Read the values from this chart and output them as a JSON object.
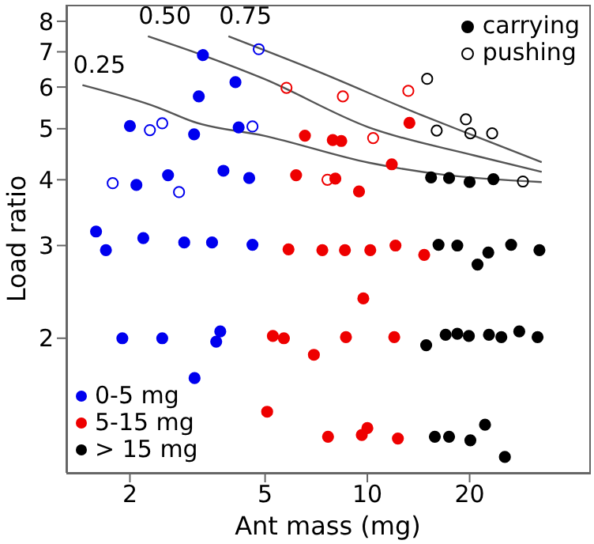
{
  "chart_data": {
    "type": "scatter",
    "xlabel": "Ant mass (mg)",
    "ylabel": "Load ratio",
    "log": "xy",
    "xlim": [
      1.3,
      45
    ],
    "xticks": [
      2,
      5,
      10,
      20
    ],
    "ylim": [
      1.11,
      8.6
    ],
    "yticks": [
      2,
      3,
      4,
      5,
      6,
      7,
      8
    ],
    "grid": false,
    "legend": "bottom left",
    "marker": "circle",
    "annotations": [
      "carrying",
      "pushing"
    ],
    "series": [
      {
        "name": "0-5 mg",
        "color": "#0000ee",
        "x": [
          2.0,
          2.09,
          2.59,
          3.09,
          3.19,
          3.28,
          3.77,
          4.09,
          4.18,
          4.49,
          1.59,
          1.7,
          1.9,
          2.19,
          2.49,
          2.89,
          3.1,
          3.49,
          3.59,
          3.69,
          4.59
        ],
        "values": [
          5.06,
          3.91,
          4.08,
          4.88,
          5.76,
          6.9,
          4.16,
          6.13,
          5.03,
          4.03,
          3.19,
          2.94,
          2.0,
          3.1,
          2.0,
          3.04,
          1.68,
          3.04,
          1.97,
          2.06,
          3.01
        ]
      },
      {
        "color": "#0000ee",
        "x": [
          1.78,
          2.29,
          2.49,
          2.79,
          4.59,
          4.79
        ],
        "values": [
          3.94,
          4.97,
          5.12,
          3.79,
          5.05,
          7.08
        ]
      },
      {
        "name": "5-15 mg",
        "color": "#ee0000",
        "x": [
          6.17,
          6.55,
          7.91,
          8.05,
          8.38,
          9.45,
          11.8,
          13.3,
          5.27,
          5.68,
          5.86,
          6.96,
          7.37,
          8.59,
          8.65,
          9.73,
          10.2,
          12.0,
          12.1,
          14.7,
          5.07,
          7.66,
          9.63,
          10.0,
          12.3
        ],
        "values": [
          4.08,
          4.85,
          4.76,
          4.02,
          4.74,
          3.8,
          4.28,
          5.13,
          2.02,
          2.0,
          2.95,
          1.86,
          2.94,
          2.94,
          2.01,
          2.38,
          2.94,
          2.01,
          3.0,
          2.88,
          1.45,
          1.3,
          1.31,
          1.35,
          1.29
        ]
      },
      {
        "color": "#ee0000",
        "x": [
          5.78,
          7.63,
          8.47,
          10.4,
          13.2
        ],
        "values": [
          5.98,
          4.0,
          5.76,
          4.8,
          5.9
        ]
      },
      {
        "name": "> 15 mg",
        "color": "#000000",
        "x": [
          15.4,
          17.4,
          20.0,
          23.5,
          14.9,
          16.2,
          17.0,
          18.4,
          18.4,
          19.9,
          21.1,
          22.7,
          22.8,
          24.8,
          26.5,
          28.0,
          31.7,
          32.1,
          15.8,
          17.4,
          20.1,
          22.2,
          25.4
        ],
        "values": [
          4.04,
          4.03,
          3.96,
          4.01,
          1.94,
          3.01,
          2.03,
          3.0,
          2.04,
          2.02,
          2.76,
          2.91,
          2.03,
          2.01,
          3.01,
          2.06,
          2.01,
          2.94,
          1.3,
          1.3,
          1.28,
          1.37,
          1.19
        ]
      },
      {
        "color": "#000000",
        "x": [
          15.0,
          16.0,
          19.5,
          20.1,
          23.3,
          28.7
        ],
        "values": [
          6.22,
          4.96,
          5.21,
          4.9,
          4.9,
          3.97
        ]
      },
      {
        "name": "0.25",
        "type": "line",
        "color": "#555555",
        "marker": "none",
        "x": [
          1.45,
          2.43,
          3.09,
          4.96,
          10.1,
          16.7,
          32.6
        ],
        "values": [
          6.05,
          5.48,
          5.15,
          4.85,
          4.31,
          4.09,
          3.96
        ]
      },
      {
        "name": "0.50",
        "type": "line",
        "color": "#555555",
        "marker": "none",
        "x": [
          2.26,
          3.35,
          4.96,
          10.1,
          20.6,
          32.6
        ],
        "values": [
          7.49,
          6.86,
          6.22,
          5.03,
          4.45,
          4.14
        ]
      },
      {
        "name": "0.75",
        "type": "line",
        "color": "#555555",
        "marker": "none",
        "x": [
          3.9,
          7.08,
          14.5,
          20.6,
          32.6
        ],
        "values": [
          7.49,
          6.44,
          5.3,
          4.85,
          4.32
        ]
      }
    ]
  }
}
